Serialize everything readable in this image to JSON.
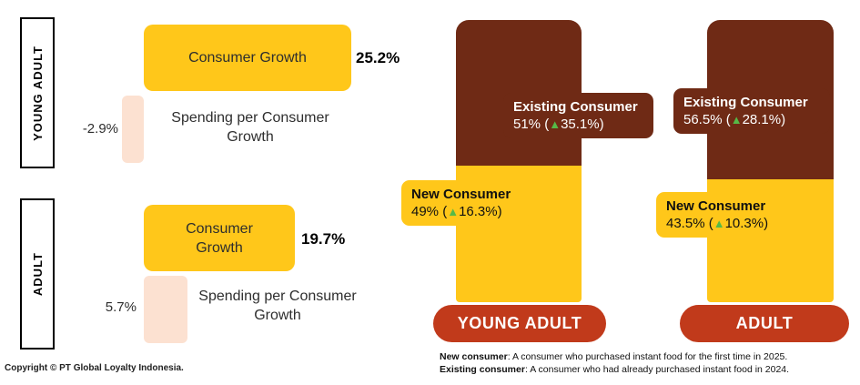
{
  "icons": {
    "up_triangle": "▲"
  },
  "colors": {
    "yellow": "#FFC71A",
    "brown": "#6F2A15",
    "peach": "#FCE1D1",
    "pill_red": "#C13A1B",
    "growth_green": "#56B947"
  },
  "left_chart": {
    "groups": [
      {
        "axis_label": "YOUNG ADULT",
        "consumer_growth": {
          "label": "Consumer Growth",
          "value_label": "25.2%"
        },
        "spending_growth": {
          "label": "Spending per Consumer Growth",
          "value_label": "-2.9%"
        }
      },
      {
        "axis_label": "ADULT",
        "consumer_growth": {
          "label": "Consumer Growth",
          "value_label": "19.7%"
        },
        "spending_growth": {
          "label": "Spending per Consumer Growth",
          "value_label": "5.7%"
        }
      }
    ]
  },
  "right_chart": {
    "bars": [
      {
        "pill_label": "YOUNG ADULT",
        "existing": {
          "title": "Existing Consumer",
          "share_prefix": "51% (",
          "growth_suffix": "35.1%)"
        },
        "new": {
          "title": "New Consumer",
          "share_prefix": "49% (",
          "growth_suffix": "16.3%)"
        }
      },
      {
        "pill_label": "ADULT",
        "existing": {
          "title": "Existing Consumer",
          "share_prefix": "56.5% (",
          "growth_suffix": "28.1%)"
        },
        "new": {
          "title": "New Consumer",
          "share_prefix": "43.5% (",
          "growth_suffix": "10.3%)"
        }
      }
    ]
  },
  "footer": {
    "copyright": "Copyright © PT Global Loyalty Indonesia.",
    "notes": [
      {
        "term": "New consumer",
        "text": ": A consumer who purchased instant food for the first time in 2025."
      },
      {
        "term": "Existing consumer",
        "text": ": A consumer who had already purchased instant food in 2024."
      }
    ]
  },
  "chart_data": [
    {
      "type": "bar",
      "orientation": "horizontal",
      "title": "Consumer Growth vs Spending per Consumer Growth",
      "categories": [
        "YOUNG ADULT",
        "ADULT"
      ],
      "series": [
        {
          "name": "Consumer Growth",
          "values": [
            25.2,
            19.7
          ],
          "color": "#FFC71A"
        },
        {
          "name": "Spending per Consumer Growth",
          "values": [
            -2.9,
            5.7
          ],
          "color": "#FCE1D1"
        }
      ],
      "unit": "%",
      "grid": false,
      "legend": false
    },
    {
      "type": "bar",
      "subtype": "stacked-100",
      "title": "Consumer mix: New vs Existing",
      "categories": [
        "YOUNG ADULT",
        "ADULT"
      ],
      "series": [
        {
          "name": "Existing Consumer",
          "values": [
            51,
            56.5
          ],
          "yoy_growth": [
            35.1,
            28.1
          ],
          "color": "#6F2A15"
        },
        {
          "name": "New Consumer",
          "values": [
            49,
            43.5
          ],
          "yoy_growth": [
            16.3,
            10.3
          ],
          "color": "#FFC71A"
        }
      ],
      "unit": "%",
      "grid": false,
      "legend": false
    }
  ]
}
